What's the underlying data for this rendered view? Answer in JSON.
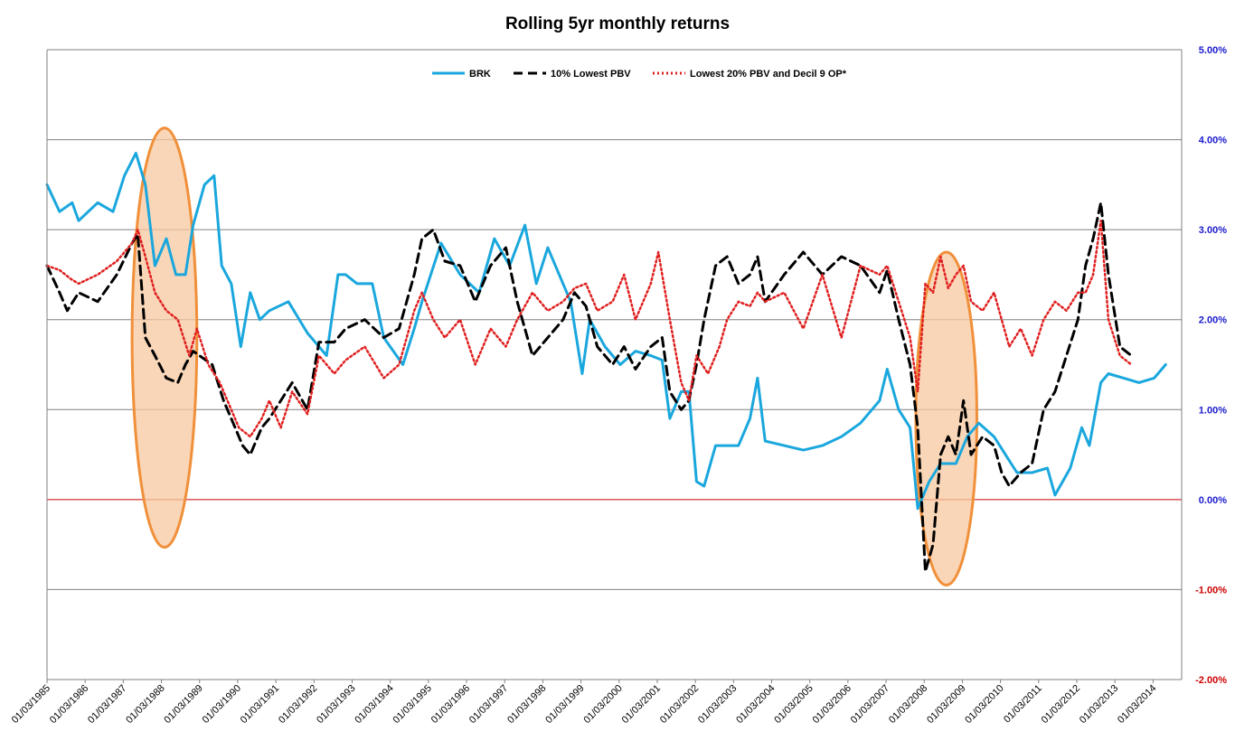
{
  "chart_data": {
    "type": "line",
    "title": "Rolling 5yr monthly returns",
    "xlabel": "",
    "ylabel": "",
    "x_ticks": [
      "01/03/1985",
      "01/03/1986",
      "01/03/1987",
      "01/03/1988",
      "01/03/1989",
      "01/03/1990",
      "01/03/1991",
      "01/03/1992",
      "01/03/1993",
      "01/03/1994",
      "01/03/1995",
      "01/03/1996",
      "01/03/1997",
      "01/03/1998",
      "01/03/1999",
      "01/03/2000",
      "01/03/2001",
      "01/03/2002",
      "01/03/2003",
      "01/03/2004",
      "01/03/2005",
      "01/03/2006",
      "01/03/2007",
      "01/03/2008",
      "01/03/2009",
      "01/03/2010",
      "01/03/2011",
      "01/03/2012",
      "01/03/2013",
      "01/03/2014"
    ],
    "xlim": [
      1985.17,
      2014.92
    ],
    "y_ticks": [
      "5.00%",
      "4.00%",
      "3.00%",
      "2.00%",
      "1.00%",
      "0.00%",
      "-1.00%",
      "-2.00%"
    ],
    "ylim": [
      -2.0,
      5.0
    ],
    "y_axis_side": "right",
    "grid": true,
    "legend_position": "top",
    "zero_line_color": "#cc0000",
    "series": [
      {
        "name": "BRK",
        "color": "#1aa7dd",
        "style": "solid",
        "points": [
          [
            1985.17,
            3.5
          ],
          [
            1985.5,
            3.2
          ],
          [
            1985.83,
            3.3
          ],
          [
            1986.0,
            3.1
          ],
          [
            1986.5,
            3.3
          ],
          [
            1986.9,
            3.2
          ],
          [
            1987.2,
            3.6
          ],
          [
            1987.5,
            3.85
          ],
          [
            1987.75,
            3.5
          ],
          [
            1988.0,
            2.6
          ],
          [
            1988.3,
            2.9
          ],
          [
            1988.55,
            2.5
          ],
          [
            1988.8,
            2.5
          ],
          [
            1989.0,
            3.05
          ],
          [
            1989.3,
            3.5
          ],
          [
            1989.55,
            3.6
          ],
          [
            1989.75,
            2.6
          ],
          [
            1990.0,
            2.4
          ],
          [
            1990.25,
            1.7
          ],
          [
            1990.5,
            2.3
          ],
          [
            1990.75,
            2.0
          ],
          [
            1991.0,
            2.1
          ],
          [
            1991.5,
            2.2
          ],
          [
            1992.0,
            1.85
          ],
          [
            1992.5,
            1.6
          ],
          [
            1992.8,
            2.5
          ],
          [
            1993.0,
            2.5
          ],
          [
            1993.3,
            2.4
          ],
          [
            1993.7,
            2.4
          ],
          [
            1994.0,
            1.8
          ],
          [
            1994.5,
            1.5
          ],
          [
            1994.8,
            1.9
          ],
          [
            1995.0,
            2.2
          ],
          [
            1995.5,
            2.85
          ],
          [
            1996.0,
            2.5
          ],
          [
            1996.5,
            2.3
          ],
          [
            1996.9,
            2.9
          ],
          [
            1997.3,
            2.6
          ],
          [
            1997.7,
            3.05
          ],
          [
            1998.0,
            2.4
          ],
          [
            1998.3,
            2.8
          ],
          [
            1998.6,
            2.5
          ],
          [
            1998.9,
            2.2
          ],
          [
            1999.2,
            1.4
          ],
          [
            1999.4,
            2.0
          ],
          [
            1999.8,
            1.7
          ],
          [
            2000.2,
            1.5
          ],
          [
            2000.6,
            1.65
          ],
          [
            2001.0,
            1.6
          ],
          [
            2001.3,
            1.55
          ],
          [
            2001.5,
            0.9
          ],
          [
            2001.8,
            1.2
          ],
          [
            2002.0,
            1.2
          ],
          [
            2002.2,
            0.2
          ],
          [
            2002.4,
            0.15
          ],
          [
            2002.7,
            0.6
          ],
          [
            2003.0,
            0.6
          ],
          [
            2003.3,
            0.6
          ],
          [
            2003.6,
            0.9
          ],
          [
            2003.8,
            1.35
          ],
          [
            2004.0,
            0.65
          ],
          [
            2004.5,
            0.6
          ],
          [
            2005.0,
            0.55
          ],
          [
            2005.5,
            0.6
          ],
          [
            2006.0,
            0.7
          ],
          [
            2006.5,
            0.85
          ],
          [
            2007.0,
            1.1
          ],
          [
            2007.2,
            1.45
          ],
          [
            2007.5,
            1.0
          ],
          [
            2007.8,
            0.8
          ],
          [
            2008.0,
            -0.1
          ],
          [
            2008.3,
            0.2
          ],
          [
            2008.6,
            0.4
          ],
          [
            2009.0,
            0.4
          ],
          [
            2009.3,
            0.7
          ],
          [
            2009.6,
            0.85
          ],
          [
            2010.0,
            0.7
          ],
          [
            2010.3,
            0.5
          ],
          [
            2010.6,
            0.3
          ],
          [
            2011.0,
            0.3
          ],
          [
            2011.4,
            0.35
          ],
          [
            2011.6,
            0.05
          ],
          [
            2012.0,
            0.35
          ],
          [
            2012.3,
            0.8
          ],
          [
            2012.5,
            0.6
          ],
          [
            2012.8,
            1.3
          ],
          [
            2013.0,
            1.4
          ],
          [
            2013.4,
            1.35
          ],
          [
            2013.8,
            1.3
          ],
          [
            2014.2,
            1.35
          ],
          [
            2014.5,
            1.5
          ]
        ]
      },
      {
        "name": "10% Lowest PBV",
        "color": "#000000",
        "style": "dashed",
        "points": [
          [
            1985.17,
            2.6
          ],
          [
            1985.5,
            2.3
          ],
          [
            1985.7,
            2.1
          ],
          [
            1986.0,
            2.3
          ],
          [
            1986.5,
            2.2
          ],
          [
            1987.0,
            2.5
          ],
          [
            1987.4,
            2.85
          ],
          [
            1987.55,
            2.95
          ],
          [
            1987.75,
            1.8
          ],
          [
            1988.0,
            1.6
          ],
          [
            1988.3,
            1.35
          ],
          [
            1988.6,
            1.3
          ],
          [
            1988.8,
            1.5
          ],
          [
            1989.0,
            1.65
          ],
          [
            1989.5,
            1.5
          ],
          [
            1989.8,
            1.1
          ],
          [
            1990.0,
            0.9
          ],
          [
            1990.3,
            0.6
          ],
          [
            1990.5,
            0.5
          ],
          [
            1990.8,
            0.8
          ],
          [
            1991.0,
            0.9
          ],
          [
            1991.3,
            1.1
          ],
          [
            1991.6,
            1.3
          ],
          [
            1992.0,
            1.0
          ],
          [
            1992.3,
            1.75
          ],
          [
            1992.7,
            1.75
          ],
          [
            1993.0,
            1.9
          ],
          [
            1993.5,
            2.0
          ],
          [
            1994.0,
            1.8
          ],
          [
            1994.4,
            1.9
          ],
          [
            1994.8,
            2.5
          ],
          [
            1995.0,
            2.9
          ],
          [
            1995.3,
            3.0
          ],
          [
            1995.6,
            2.65
          ],
          [
            1996.0,
            2.6
          ],
          [
            1996.4,
            2.2
          ],
          [
            1996.8,
            2.6
          ],
          [
            1997.2,
            2.8
          ],
          [
            1997.5,
            2.2
          ],
          [
            1997.9,
            1.6
          ],
          [
            1998.3,
            1.8
          ],
          [
            1998.7,
            2.0
          ],
          [
            1999.0,
            2.3
          ],
          [
            1999.3,
            2.15
          ],
          [
            1999.6,
            1.7
          ],
          [
            2000.0,
            1.5
          ],
          [
            2000.3,
            1.7
          ],
          [
            2000.6,
            1.45
          ],
          [
            2001.0,
            1.7
          ],
          [
            2001.3,
            1.8
          ],
          [
            2001.5,
            1.2
          ],
          [
            2001.8,
            1.0
          ],
          [
            2002.0,
            1.1
          ],
          [
            2002.2,
            1.5
          ],
          [
            2002.4,
            2.0
          ],
          [
            2002.7,
            2.6
          ],
          [
            2003.0,
            2.7
          ],
          [
            2003.3,
            2.4
          ],
          [
            2003.6,
            2.5
          ],
          [
            2003.8,
            2.7
          ],
          [
            2004.0,
            2.2
          ],
          [
            2004.5,
            2.5
          ],
          [
            2005.0,
            2.75
          ],
          [
            2005.5,
            2.5
          ],
          [
            2006.0,
            2.7
          ],
          [
            2006.5,
            2.6
          ],
          [
            2007.0,
            2.3
          ],
          [
            2007.2,
            2.55
          ],
          [
            2007.5,
            2.0
          ],
          [
            2007.8,
            1.5
          ],
          [
            2008.0,
            0.8
          ],
          [
            2008.2,
            -0.8
          ],
          [
            2008.4,
            -0.5
          ],
          [
            2008.6,
            0.5
          ],
          [
            2008.8,
            0.7
          ],
          [
            2009.0,
            0.5
          ],
          [
            2009.2,
            1.1
          ],
          [
            2009.4,
            0.5
          ],
          [
            2009.7,
            0.7
          ],
          [
            2010.0,
            0.6
          ],
          [
            2010.2,
            0.3
          ],
          [
            2010.4,
            0.15
          ],
          [
            2010.7,
            0.3
          ],
          [
            2011.0,
            0.4
          ],
          [
            2011.3,
            1.0
          ],
          [
            2011.6,
            1.2
          ],
          [
            2011.9,
            1.6
          ],
          [
            2012.2,
            2.0
          ],
          [
            2012.4,
            2.6
          ],
          [
            2012.6,
            2.9
          ],
          [
            2012.8,
            3.3
          ],
          [
            2013.0,
            2.5
          ],
          [
            2013.3,
            1.7
          ],
          [
            2013.6,
            1.6
          ]
        ]
      },
      {
        "name": "Lowest 20% PBV and Decil 9 OP*",
        "color": "#e02020",
        "style": "dotted",
        "points": [
          [
            1985.17,
            2.6
          ],
          [
            1985.5,
            2.55
          ],
          [
            1985.8,
            2.45
          ],
          [
            1986.0,
            2.4
          ],
          [
            1986.5,
            2.5
          ],
          [
            1987.0,
            2.65
          ],
          [
            1987.4,
            2.85
          ],
          [
            1987.55,
            3.0
          ],
          [
            1987.75,
            2.7
          ],
          [
            1988.0,
            2.3
          ],
          [
            1988.3,
            2.1
          ],
          [
            1988.6,
            2.0
          ],
          [
            1988.9,
            1.6
          ],
          [
            1989.1,
            1.9
          ],
          [
            1989.4,
            1.5
          ],
          [
            1989.7,
            1.3
          ],
          [
            1990.0,
            1.0
          ],
          [
            1990.2,
            0.8
          ],
          [
            1990.5,
            0.7
          ],
          [
            1990.8,
            0.9
          ],
          [
            1991.0,
            1.1
          ],
          [
            1991.3,
            0.8
          ],
          [
            1991.6,
            1.2
          ],
          [
            1992.0,
            0.95
          ],
          [
            1992.3,
            1.6
          ],
          [
            1992.7,
            1.4
          ],
          [
            1993.0,
            1.55
          ],
          [
            1993.5,
            1.7
          ],
          [
            1994.0,
            1.35
          ],
          [
            1994.4,
            1.5
          ],
          [
            1994.8,
            2.1
          ],
          [
            1995.0,
            2.3
          ],
          [
            1995.3,
            2.0
          ],
          [
            1995.6,
            1.8
          ],
          [
            1996.0,
            2.0
          ],
          [
            1996.4,
            1.5
          ],
          [
            1996.8,
            1.9
          ],
          [
            1997.2,
            1.7
          ],
          [
            1997.5,
            2.0
          ],
          [
            1997.9,
            2.3
          ],
          [
            1998.3,
            2.1
          ],
          [
            1998.7,
            2.2
          ],
          [
            1999.0,
            2.35
          ],
          [
            1999.3,
            2.4
          ],
          [
            1999.6,
            2.1
          ],
          [
            2000.0,
            2.2
          ],
          [
            2000.3,
            2.5
          ],
          [
            2000.6,
            2.0
          ],
          [
            2001.0,
            2.4
          ],
          [
            2001.2,
            2.75
          ],
          [
            2001.5,
            2.0
          ],
          [
            2001.8,
            1.3
          ],
          [
            2002.0,
            1.1
          ],
          [
            2002.2,
            1.6
          ],
          [
            2002.5,
            1.4
          ],
          [
            2002.8,
            1.7
          ],
          [
            2003.0,
            2.0
          ],
          [
            2003.3,
            2.2
          ],
          [
            2003.6,
            2.15
          ],
          [
            2003.8,
            2.3
          ],
          [
            2004.0,
            2.2
          ],
          [
            2004.5,
            2.3
          ],
          [
            2005.0,
            1.9
          ],
          [
            2005.5,
            2.5
          ],
          [
            2006.0,
            1.8
          ],
          [
            2006.5,
            2.6
          ],
          [
            2007.0,
            2.5
          ],
          [
            2007.2,
            2.6
          ],
          [
            2007.5,
            2.2
          ],
          [
            2007.8,
            1.8
          ],
          [
            2008.0,
            1.2
          ],
          [
            2008.2,
            2.4
          ],
          [
            2008.4,
            2.3
          ],
          [
            2008.6,
            2.7
          ],
          [
            2008.8,
            2.35
          ],
          [
            2009.0,
            2.5
          ],
          [
            2009.2,
            2.6
          ],
          [
            2009.4,
            2.2
          ],
          [
            2009.7,
            2.1
          ],
          [
            2010.0,
            2.3
          ],
          [
            2010.2,
            2.0
          ],
          [
            2010.4,
            1.7
          ],
          [
            2010.7,
            1.9
          ],
          [
            2011.0,
            1.6
          ],
          [
            2011.3,
            2.0
          ],
          [
            2011.6,
            2.2
          ],
          [
            2011.9,
            2.1
          ],
          [
            2012.2,
            2.3
          ],
          [
            2012.4,
            2.3
          ],
          [
            2012.6,
            2.5
          ],
          [
            2012.8,
            3.1
          ],
          [
            2013.0,
            2.0
          ],
          [
            2013.3,
            1.6
          ],
          [
            2013.6,
            1.5
          ]
        ]
      }
    ],
    "highlight_ellipses": [
      {
        "x_center": 1988.25,
        "y_center": 1.8,
        "x_radius": 0.85,
        "y_radius": 2.33,
        "fill": "#f8c8a0",
        "stroke": "#f0903a"
      },
      {
        "x_center": 2008.75,
        "y_center": 0.9,
        "x_radius": 0.8,
        "y_radius": 1.85,
        "fill": "#f8c8a0",
        "stroke": "#f0903a"
      }
    ]
  }
}
